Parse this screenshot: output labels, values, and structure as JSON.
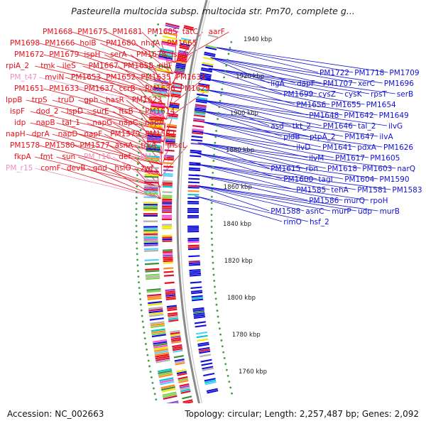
{
  "title": "Pasteurella multocida subsp. multocida str. Pm70, complete g...",
  "footer": {
    "accession": "Accession: NC_002663",
    "summary": "Topology: circular; Length: 2,257,487 bp; Genes: 2,092"
  },
  "colors": {
    "left_label": "#e8101a",
    "left_label_pink": "#f08fc6",
    "right_label": "#1010d8",
    "backbone": "#8a8a8a",
    "tick_dot": "#3aa040"
  },
  "ruler": [
    {
      "label": "1940 kbp"
    },
    {
      "label": "1920 kbp"
    },
    {
      "label": "1900 kbp"
    },
    {
      "label": "1880 kbp"
    },
    {
      "label": "1860 kbp"
    },
    {
      "label": "1840 kbp"
    },
    {
      "label": "1820 kbp"
    },
    {
      "label": "1800 kbp"
    },
    {
      "label": "1780 kbp"
    },
    {
      "label": "1760 kbp"
    }
  ],
  "left_labels": [
    {
      "text": "PM1668"
    },
    {
      "text": "PM1675"
    },
    {
      "text": "PM1681"
    },
    {
      "text": "PM1685"
    },
    {
      "text": "tatC"
    },
    {
      "text": "aarF"
    },
    {
      "text": "PM1698"
    },
    {
      "text": "PM1666"
    },
    {
      "text": "holB"
    },
    {
      "text": "PM1680"
    },
    {
      "text": "nhaA"
    },
    {
      "text": "PM1665"
    },
    {
      "text": "PM1672"
    },
    {
      "text": "PM1679"
    },
    {
      "text": "ispH"
    },
    {
      "text": "serA"
    },
    {
      "text": "PM1678"
    },
    {
      "text": "lspA"
    },
    {
      "text": "rpiA_2"
    },
    {
      "text": "tmk"
    },
    {
      "text": "ileS"
    },
    {
      "text": "PM1667"
    },
    {
      "text": "PM1658"
    },
    {
      "text": "ribF"
    },
    {
      "text": "PM_t47",
      "pink": true
    },
    {
      "text": "mviN"
    },
    {
      "text": "PM1653"
    },
    {
      "text": "PM1652"
    },
    {
      "text": "PM1635"
    },
    {
      "text": "PM1634"
    },
    {
      "text": "PM1651"
    },
    {
      "text": "PM1633"
    },
    {
      "text": "PM1637"
    },
    {
      "text": "ccrB"
    },
    {
      "text": "PM1636"
    },
    {
      "text": "PM1629"
    },
    {
      "text": "lppB"
    },
    {
      "text": "trpS"
    },
    {
      "text": "truD"
    },
    {
      "text": "gph"
    },
    {
      "text": "hasR"
    },
    {
      "text": "PM1623"
    },
    {
      "text": "ispF"
    },
    {
      "text": "dod_2"
    },
    {
      "text": "ispD"
    },
    {
      "text": "surE"
    },
    {
      "text": "ftsB"
    },
    {
      "text": "PM1614"
    },
    {
      "text": "idp"
    },
    {
      "text": "napB"
    },
    {
      "text": "tal_1"
    },
    {
      "text": "napG"
    },
    {
      "text": "napC"
    },
    {
      "text": "napA"
    },
    {
      "text": "napH"
    },
    {
      "text": "dprA"
    },
    {
      "text": "napD"
    },
    {
      "text": "napF"
    },
    {
      "text": "PM1579"
    },
    {
      "text": "PM1582"
    },
    {
      "text": "PM1578"
    },
    {
      "text": "PM1580"
    },
    {
      "text": "PM1577"
    },
    {
      "text": "asnA"
    },
    {
      "text": "trkA"
    },
    {
      "text": "mscL"
    },
    {
      "text": "fkpA"
    },
    {
      "text": "fmt"
    },
    {
      "text": "sun"
    },
    {
      "text": "PM_r16",
      "pink": true
    },
    {
      "text": "def"
    },
    {
      "text": "PM_r14",
      "pink": true
    },
    {
      "text": "PM_r15",
      "pink": true
    },
    {
      "text": "comF"
    },
    {
      "text": "devB"
    },
    {
      "text": "gnd"
    },
    {
      "text": "hslO"
    },
    {
      "text": "zwf"
    }
  ],
  "right_labels": [
    {
      "text": "PM1722"
    },
    {
      "text": "PM1718"
    },
    {
      "text": "PM1709"
    },
    {
      "text": "ligA"
    },
    {
      "text": "dapF"
    },
    {
      "text": "PM1707"
    },
    {
      "text": "xerC"
    },
    {
      "text": "PM1696"
    },
    {
      "text": "PM1699"
    },
    {
      "text": "cysZ"
    },
    {
      "text": "cysK"
    },
    {
      "text": "rpsT"
    },
    {
      "text": "serB"
    },
    {
      "text": "PM1656"
    },
    {
      "text": "PM1655"
    },
    {
      "text": "PM1654"
    },
    {
      "text": "PM1648"
    },
    {
      "text": "PM1642"
    },
    {
      "text": "PM1649"
    },
    {
      "text": "asd"
    },
    {
      "text": "tkt_2"
    },
    {
      "text": "PM1646"
    },
    {
      "text": "tal_2"
    },
    {
      "text": "ilvG"
    },
    {
      "text": "pldB"
    },
    {
      "text": "ptpA_2"
    },
    {
      "text": "PM1647"
    },
    {
      "text": "ilvA"
    },
    {
      "text": "ilvD"
    },
    {
      "text": "PM1641"
    },
    {
      "text": "pdxA"
    },
    {
      "text": "PM1626"
    },
    {
      "text": "ilvM"
    },
    {
      "text": "PM1617"
    },
    {
      "text": "PM1605"
    },
    {
      "text": "PM1615"
    },
    {
      "text": "rbn"
    },
    {
      "text": "PM1618"
    },
    {
      "text": "PM1603"
    },
    {
      "text": "narQ"
    },
    {
      "text": "PM1600"
    },
    {
      "text": "tagI"
    },
    {
      "text": "PM1604"
    },
    {
      "text": "PM1590"
    },
    {
      "text": "PM1585"
    },
    {
      "text": "tehA"
    },
    {
      "text": "PM1581"
    },
    {
      "text": "PM1583"
    },
    {
      "text": "PM1586"
    },
    {
      "text": "murQ"
    },
    {
      "text": "rpoH"
    },
    {
      "text": "PM1588"
    },
    {
      "text": "asnC"
    },
    {
      "text": "murP"
    },
    {
      "text": "udp"
    },
    {
      "text": "murB"
    },
    {
      "text": "rimO"
    },
    {
      "text": "hsf_2"
    }
  ]
}
